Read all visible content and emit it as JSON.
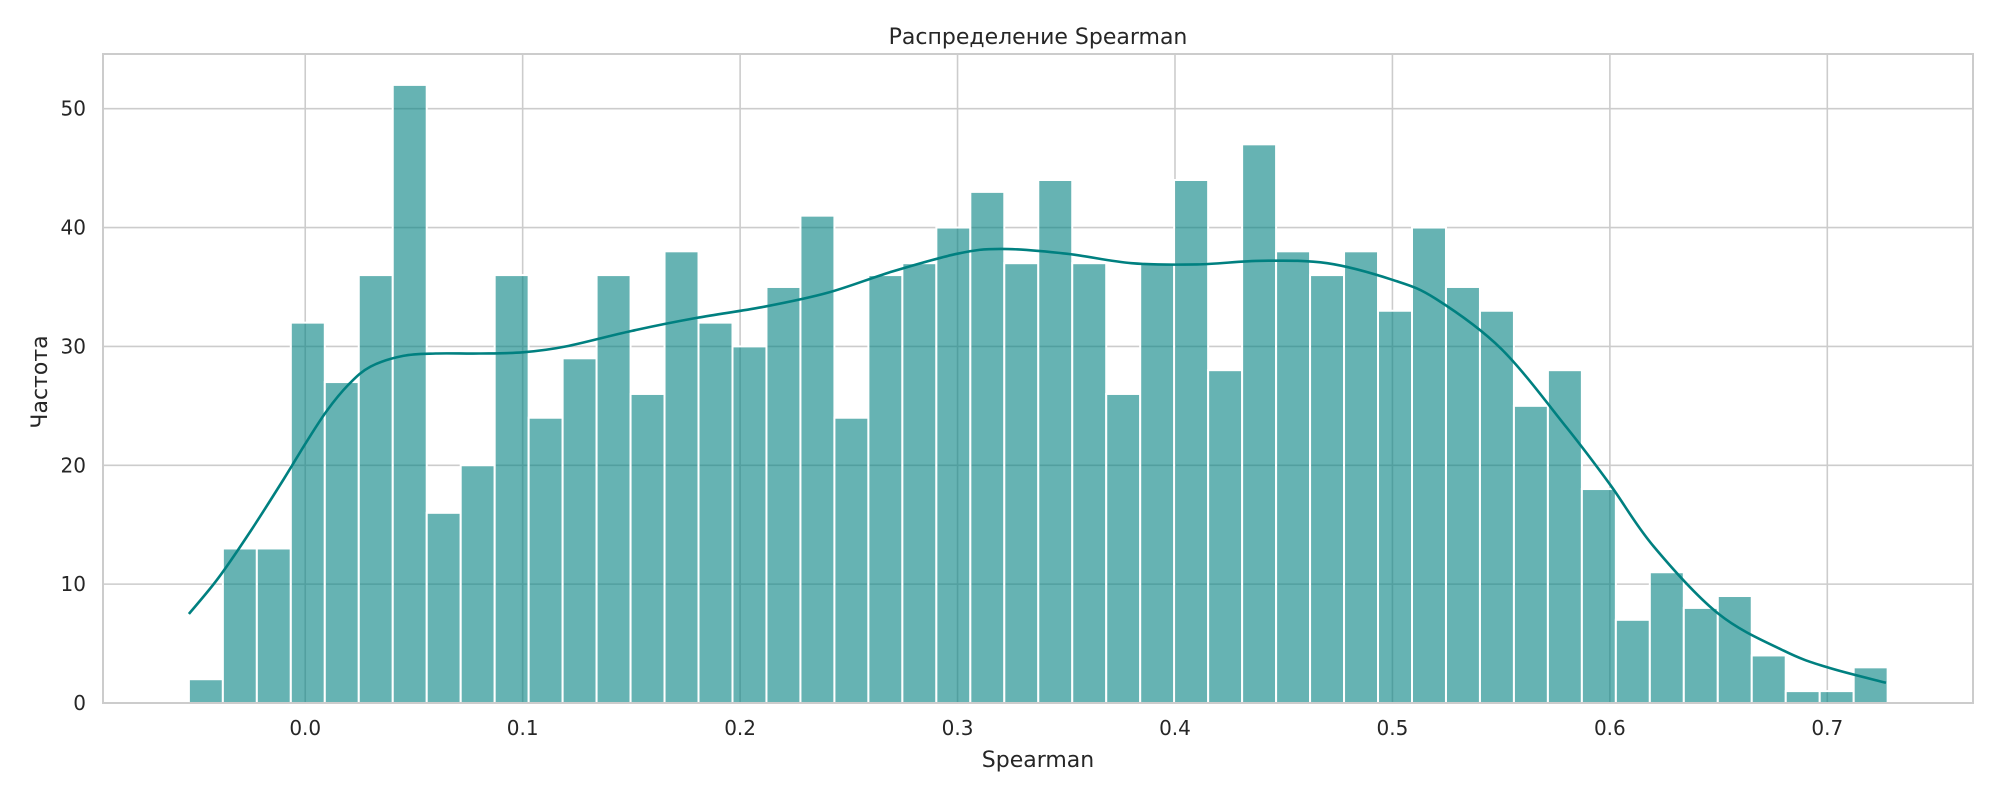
{
  "chart_data": {
    "type": "bar",
    "title": "Распределение Spearman",
    "xlabel": "Spearman",
    "ylabel": "Частота",
    "xlim": [
      -0.093,
      0.767
    ],
    "ylim": [
      0,
      54.6
    ],
    "xticks": [
      0.0,
      0.1,
      0.2,
      0.3,
      0.4,
      0.5,
      0.6,
      0.7
    ],
    "xtick_labels": [
      "0.0",
      "0.1",
      "0.2",
      "0.3",
      "0.4",
      "0.5",
      "0.6",
      "0.7"
    ],
    "yticks": [
      0,
      10,
      20,
      30,
      40,
      50
    ],
    "ytick_labels": [
      "0",
      "10",
      "20",
      "30",
      "40",
      "50"
    ],
    "grid": true,
    "bin_start": -0.0535,
    "bin_width": 0.015625,
    "values": [
      2,
      13,
      13,
      32,
      27,
      36,
      52,
      16,
      20,
      36,
      24,
      29,
      36,
      26,
      38,
      32,
      30,
      35,
      41,
      24,
      36,
      37,
      40,
      43,
      37,
      44,
      37,
      26,
      37,
      44,
      28,
      47,
      38,
      36,
      38,
      33,
      40,
      35,
      33,
      25,
      28,
      18,
      7,
      11,
      8,
      9,
      4,
      1,
      1,
      3
    ],
    "kde": {
      "x": [
        -0.0535,
        -0.04,
        -0.025,
        -0.01,
        0.0,
        0.01,
        0.02,
        0.03,
        0.045,
        0.06,
        0.08,
        0.1,
        0.12,
        0.15,
        0.18,
        0.21,
        0.24,
        0.27,
        0.3,
        0.32,
        0.35,
        0.38,
        0.41,
        0.44,
        0.47,
        0.5,
        0.52,
        0.55,
        0.58,
        0.6,
        0.62,
        0.65,
        0.68,
        0.7,
        0.727
      ],
      "y": [
        7.5,
        10.5,
        14.5,
        18.8,
        21.8,
        24.6,
        26.8,
        28.3,
        29.2,
        29.4,
        29.4,
        29.5,
        30.0,
        31.3,
        32.4,
        33.3,
        34.5,
        36.3,
        37.8,
        38.2,
        37.8,
        37.0,
        36.9,
        37.2,
        37.0,
        35.6,
        34.0,
        29.8,
        23.2,
        18.4,
        13.2,
        7.5,
        4.4,
        3.0,
        1.7
      ]
    },
    "bar_color": "#008080",
    "bar_opacity": 0.6,
    "kde_color": "#008080"
  }
}
